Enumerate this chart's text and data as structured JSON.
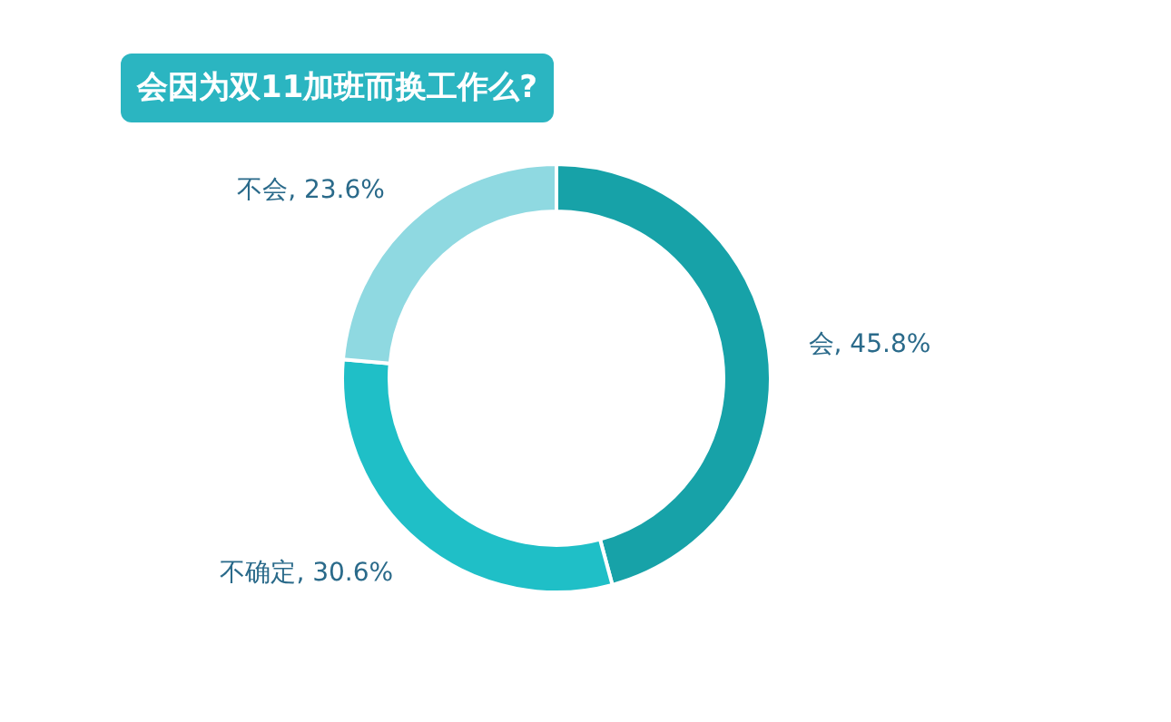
{
  "chart_data": {
    "type": "donut",
    "title": "会因为双11加班而换工作么?",
    "categories": [
      "会",
      "不确定",
      "不会"
    ],
    "values": [
      45.8,
      30.6,
      23.6
    ],
    "colors": [
      "#17a2a8",
      "#1fbfc7",
      "#8fd9e1"
    ],
    "value_labels": [
      ", 45.8%",
      ", 30.6%",
      ", 23.6%"
    ]
  }
}
